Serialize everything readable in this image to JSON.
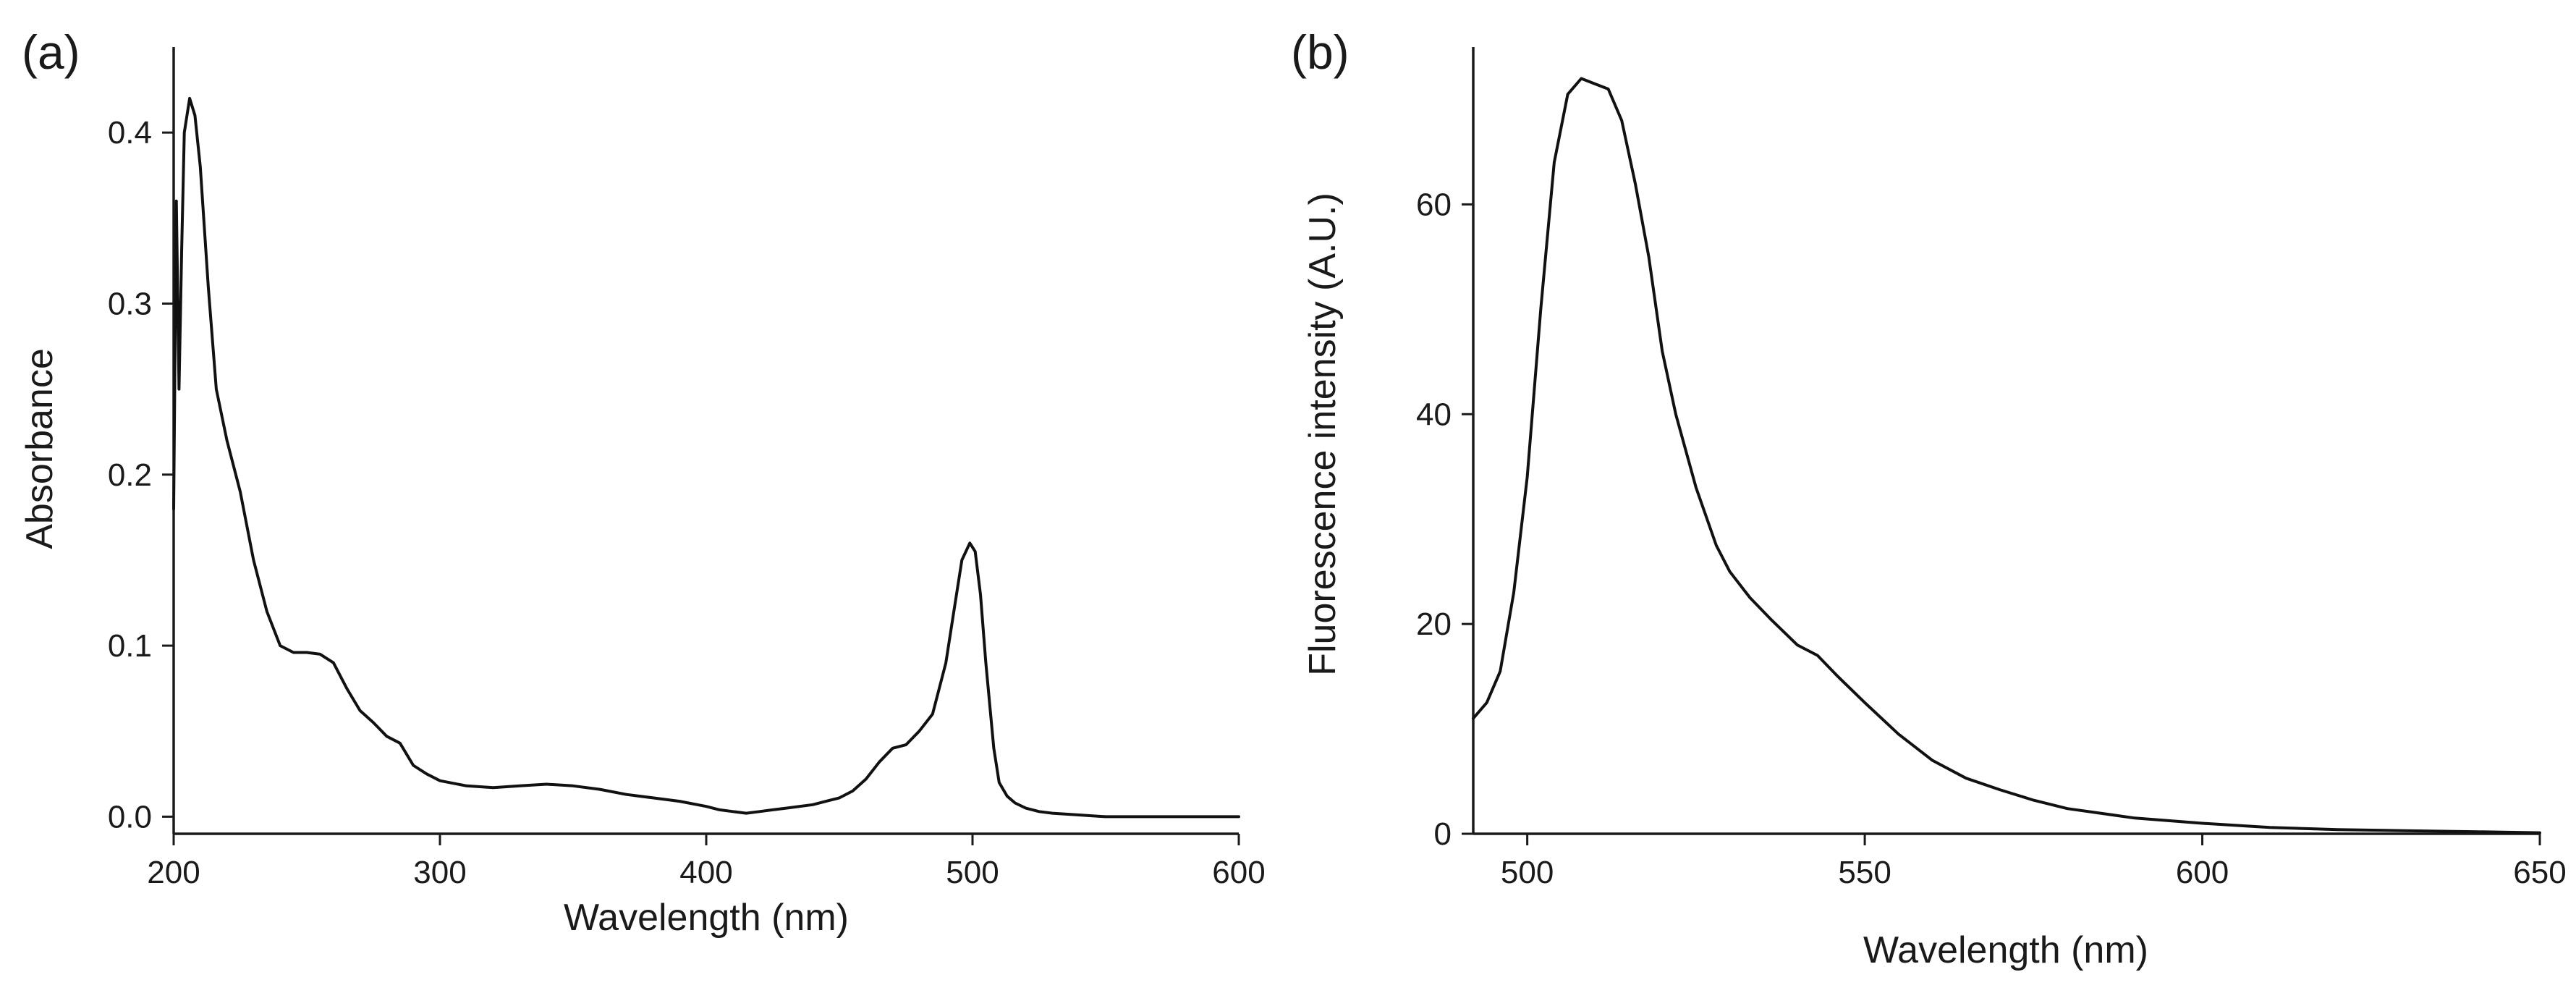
{
  "chart_data": [
    {
      "type": "line",
      "panel": "(a)",
      "title": "",
      "xlabel": "Wavelength (nm)",
      "ylabel": "Absorbance",
      "xlim": [
        200,
        600
      ],
      "ylim": [
        -0.01,
        0.45
      ],
      "xticks": [
        200,
        300,
        400,
        500,
        600
      ],
      "xtick_labels": [
        "200",
        "300",
        "400",
        "500",
        "600"
      ],
      "yticks": [
        0.0,
        0.1,
        0.2,
        0.3,
        0.4
      ],
      "ytick_labels": [
        "0.0",
        "0.1",
        "0.2",
        "0.3",
        "0.4"
      ],
      "grid": false,
      "series": [
        {
          "name": "Absorbance",
          "x": [
            200,
            201,
            202,
            203,
            204,
            205,
            206,
            208,
            210,
            213,
            216,
            220,
            225,
            230,
            235,
            240,
            245,
            250,
            255,
            260,
            265,
            270,
            275,
            280,
            285,
            290,
            295,
            300,
            310,
            320,
            330,
            340,
            350,
            360,
            370,
            380,
            390,
            400,
            405,
            410,
            415,
            420,
            425,
            430,
            440,
            450,
            455,
            460,
            465,
            470,
            475,
            480,
            485,
            490,
            493,
            496,
            499,
            501,
            503,
            505,
            508,
            510,
            513,
            516,
            520,
            525,
            530,
            540,
            550,
            560,
            570,
            580,
            590,
            600
          ],
          "values": [
            0.18,
            0.36,
            0.25,
            0.33,
            0.4,
            0.41,
            0.42,
            0.41,
            0.38,
            0.31,
            0.25,
            0.22,
            0.19,
            0.15,
            0.12,
            0.1,
            0.096,
            0.096,
            0.095,
            0.09,
            0.075,
            0.062,
            0.055,
            0.047,
            0.043,
            0.03,
            0.025,
            0.021,
            0.018,
            0.017,
            0.018,
            0.019,
            0.018,
            0.016,
            0.013,
            0.011,
            0.009,
            0.006,
            0.004,
            0.003,
            0.002,
            0.003,
            0.004,
            0.005,
            0.007,
            0.011,
            0.015,
            0.022,
            0.032,
            0.04,
            0.042,
            0.05,
            0.06,
            0.09,
            0.12,
            0.15,
            0.16,
            0.155,
            0.13,
            0.09,
            0.04,
            0.02,
            0.012,
            0.008,
            0.005,
            0.003,
            0.002,
            0.001,
            0.0,
            0.0,
            0.0,
            0.0,
            0.0,
            0.0
          ]
        }
      ]
    },
    {
      "type": "line",
      "panel": "(b)",
      "title": "",
      "xlabel": "Wavelength (nm)",
      "ylabel": "Fluorescence intensity (A.U.)",
      "xlim": [
        492,
        650
      ],
      "ylim": [
        0,
        75
      ],
      "xticks": [
        500,
        550,
        600,
        650
      ],
      "xtick_labels": [
        "500",
        "550",
        "600",
        "650"
      ],
      "yticks": [
        0,
        20,
        40,
        60
      ],
      "ytick_labels": [
        "0",
        "20",
        "40",
        "60"
      ],
      "grid": false,
      "series": [
        {
          "name": "Fluorescence intensity",
          "x": [
            492,
            494,
            496,
            498,
            500,
            502,
            504,
            506,
            508,
            510,
            512,
            514,
            516,
            518,
            520,
            522,
            525,
            528,
            530,
            533,
            536,
            540,
            543,
            546,
            550,
            555,
            560,
            565,
            570,
            575,
            580,
            590,
            600,
            610,
            620,
            630,
            640,
            650
          ],
          "values": [
            11,
            12.5,
            15.5,
            23,
            34,
            50,
            64,
            70.5,
            72,
            71.5,
            71,
            68,
            62,
            55,
            46,
            40,
            33,
            27.5,
            25,
            22.5,
            20.5,
            18,
            17,
            15,
            12.5,
            9.5,
            7,
            5.3,
            4.2,
            3.2,
            2.4,
            1.5,
            1.0,
            0.6,
            0.4,
            0.3,
            0.2,
            0.1
          ]
        }
      ]
    }
  ]
}
